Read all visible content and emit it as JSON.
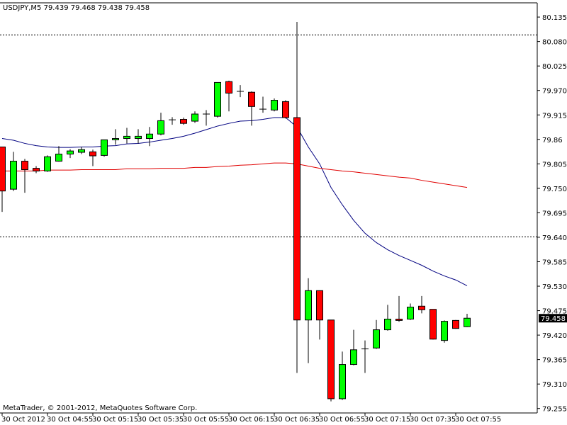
{
  "chart_data": {
    "type": "candlestick",
    "title": "USDJPY,M5  79.439 79.468 79.438 79.458",
    "footer": "MetaTrader, © 2001-2012, MetaQuotes Software Corp.",
    "categories": [
      "30 Oct 2012",
      null,
      null,
      null,
      "30 Oct 04:55",
      null,
      null,
      null,
      "30 Oct 05:15",
      null,
      null,
      null,
      "30 Oct 05:35",
      null,
      null,
      null,
      "30 Oct 05:55",
      null,
      null,
      null,
      "30 Oct 06:15",
      null,
      null,
      null,
      "30 Oct 06:35",
      null,
      null,
      null,
      "30 Oct 06:55",
      null,
      null,
      null,
      "30 Oct 07:15",
      null,
      null,
      null,
      "30 Oct 07:35",
      null,
      null,
      null,
      "30 Oct 07:55",
      null
    ],
    "open": [
      79.843,
      79.748,
      79.811,
      79.795,
      79.789,
      79.811,
      79.827,
      79.831,
      79.832,
      79.824,
      79.859,
      79.862,
      79.862,
      79.862,
      79.872,
      79.904,
      79.905,
      79.901,
      79.917,
      79.912,
      79.99,
      79.968,
      79.966,
      79.928,
      79.926,
      79.945,
      79.909,
      79.454,
      79.52,
      79.454,
      79.277,
      79.354,
      79.389,
      79.391,
      79.432,
      79.456,
      79.456,
      79.485,
      79.478,
      79.408,
      79.453,
      79.439
    ],
    "high": [
      79.843,
      79.832,
      79.816,
      79.8,
      79.824,
      79.845,
      79.838,
      79.843,
      79.837,
      79.859,
      79.883,
      79.886,
      79.883,
      79.888,
      79.92,
      79.91,
      79.909,
      79.923,
      79.926,
      79.988,
      79.992,
      79.982,
      79.968,
      79.956,
      79.952,
      79.948,
      80.124,
      79.548,
      79.52,
      79.454,
      79.383,
      79.432,
      79.408,
      79.454,
      79.488,
      79.508,
      79.491,
      79.508,
      79.478,
      79.453,
      79.454,
      79.468
    ],
    "low": [
      79.697,
      79.744,
      79.74,
      79.784,
      79.787,
      79.81,
      79.818,
      79.827,
      79.8,
      79.821,
      79.848,
      79.851,
      79.851,
      79.845,
      79.869,
      79.893,
      79.893,
      79.897,
      79.891,
      79.909,
      79.923,
      79.955,
      79.891,
      79.92,
      79.923,
      79.907,
      79.335,
      79.357,
      79.41,
      79.271,
      79.274,
      79.352,
      79.335,
      79.389,
      79.43,
      79.45,
      79.454,
      79.469,
      79.41,
      79.403,
      79.434,
      79.438
    ],
    "close": [
      79.744,
      79.811,
      79.792,
      79.789,
      79.821,
      79.827,
      79.834,
      79.837,
      79.823,
      79.859,
      79.862,
      79.867,
      79.867,
      79.872,
      79.902,
      79.904,
      79.896,
      79.917,
      79.917,
      79.988,
      79.964,
      79.968,
      79.934,
      79.928,
      79.948,
      79.909,
      79.454,
      79.52,
      79.454,
      79.277,
      79.354,
      79.387,
      79.389,
      79.432,
      79.456,
      79.453,
      79.483,
      79.477,
      79.411,
      79.451,
      79.435,
      79.458
    ],
    "up_color": "#00ff00",
    "down_color": "#ff0000",
    "lines": [
      {
        "color": "#000080",
        "values": [
          79.862,
          79.858,
          79.851,
          79.846,
          79.843,
          79.842,
          79.842,
          79.843,
          79.843,
          79.845,
          79.846,
          79.85,
          79.851,
          79.854,
          79.858,
          79.862,
          79.867,
          79.874,
          79.882,
          79.89,
          79.896,
          79.901,
          79.902,
          79.905,
          79.909,
          79.909,
          79.888,
          79.843,
          79.805,
          79.752,
          79.713,
          79.678,
          79.649,
          79.628,
          79.612,
          79.599,
          79.588,
          79.577,
          79.564,
          79.553,
          79.544,
          79.531
        ]
      },
      {
        "color": "#e00000",
        "values": [
          79.789,
          79.789,
          79.789,
          79.789,
          79.791,
          79.791,
          79.791,
          79.792,
          79.792,
          79.792,
          79.792,
          79.794,
          79.794,
          79.794,
          79.795,
          79.795,
          79.795,
          79.797,
          79.797,
          79.799,
          79.8,
          79.802,
          79.803,
          79.805,
          79.807,
          79.807,
          79.805,
          79.8,
          79.795,
          79.792,
          79.789,
          79.787,
          79.784,
          79.781,
          79.778,
          79.775,
          79.773,
          79.768,
          79.764,
          79.76,
          79.756,
          79.752
        ]
      }
    ],
    "hlines": [
      80.095,
      79.641
    ],
    "ylim": [
      79.245,
      80.167
    ],
    "yticks": [
      80.135,
      {
        "value": 80.08,
        "label": "80.080"
      },
      80.025,
      {
        "value": 79.97,
        "label": "79.970"
      },
      79.915,
      79.86,
      {
        "value": 79.805,
        "label": "79.805"
      },
      {
        "value": 79.75,
        "label": "79.750"
      },
      79.695,
      {
        "value": 79.64,
        "label": "79.640"
      },
      79.585,
      {
        "value": 79.53,
        "label": "79.530"
      },
      79.475,
      {
        "value": 79.42,
        "label": "79.420"
      },
      79.365,
      {
        "value": 79.31,
        "label": "79.310"
      },
      79.255
    ]
  }
}
